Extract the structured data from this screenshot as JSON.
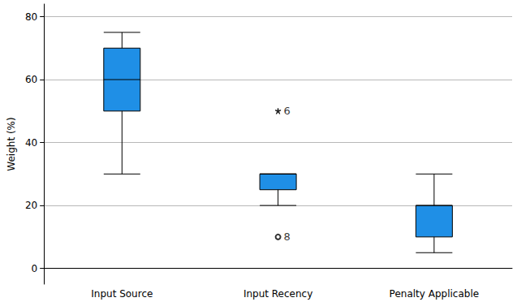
{
  "chart_data": {
    "type": "boxplot",
    "y_label": "Weight (%)",
    "categories": [
      "Input Source",
      "Input Recency",
      "Penalty Applicable"
    ],
    "boxes": [
      [
        30,
        50,
        60,
        70,
        75
      ],
      [
        20,
        25,
        30,
        30,
        30
      ],
      [
        5,
        10,
        20,
        20,
        30
      ]
    ],
    "outliers": [
      {
        "category": "Input Recency",
        "value": 50,
        "label": "6",
        "marker": "star"
      },
      {
        "category": "Input Recency",
        "value": 10,
        "label": "8",
        "marker": "circle"
      }
    ],
    "color": "#1f8fe6",
    "ylim": [
      -5,
      84
    ],
    "yticks": [
      0,
      20,
      40,
      60,
      80
    ],
    "grid": true
  }
}
